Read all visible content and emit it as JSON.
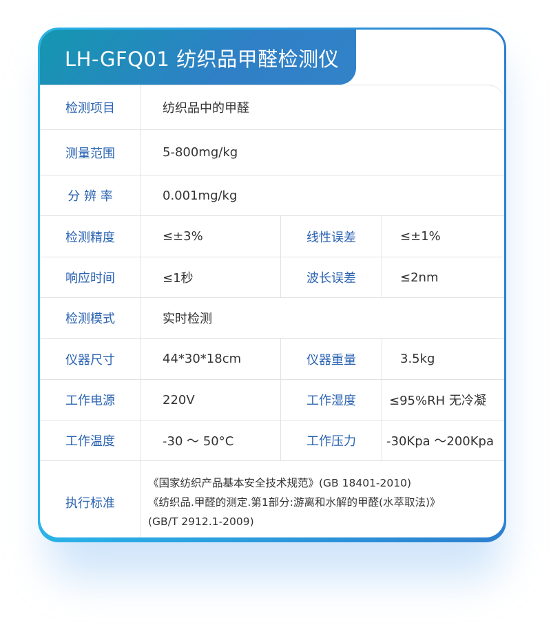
{
  "title": "LH-GFQ01 纺织品甲醛检测仪",
  "rows": [
    {
      "label": "检测项目",
      "value": "纺织品中的甲醛"
    },
    {
      "label": "测量范围",
      "value": "5-800mg/kg"
    },
    {
      "label": "分 辨 率",
      "value": "0.001mg/kg"
    },
    {
      "label": "检测精度",
      "value": "≤±3%",
      "label2": "线性误差",
      "value2": "≤±1%"
    },
    {
      "label": "响应时间",
      "value": "≤1秒",
      "label2": "波长误差",
      "value2": "≤2nm"
    },
    {
      "label": "检测模式",
      "value": "实时检测"
    },
    {
      "label": "仪器尺寸",
      "value": "44*30*18cm",
      "label2": "仪器重量",
      "value2": "3.5kg"
    },
    {
      "label": "工作电源",
      "value": "220V",
      "label2": "工作湿度",
      "value2": "≤95%RH 无冷凝"
    },
    {
      "label": "工作温度",
      "value": "-30 ～ 50°C",
      "label2": "工作压力",
      "value2": "-30Kpa ～200Kpa"
    },
    {
      "label": "执行标准",
      "lines": [
        "《国家纺织产品基本安全技术规范》(GB 18401-2010)",
        "《纺织品.甲醛的测定.第1部分:游离和水解的甲醛(水萃取法)》",
        "(GB/T 2912.1-2009)"
      ]
    }
  ]
}
